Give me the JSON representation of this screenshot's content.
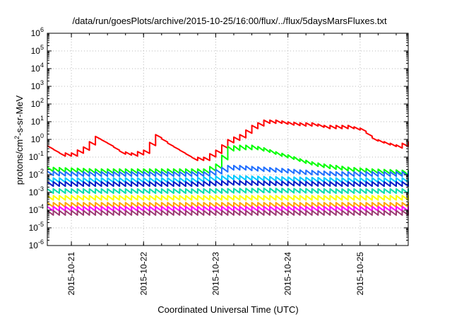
{
  "chart_data": {
    "type": "line",
    "title": "/data/run/goesPlots/archive/2015-10-25/16:00/flux/../flux/5daysMarsFluxes.txt",
    "xlabel": "Coordinated Universal Time (UTC)",
    "ylabel": "protons/cm²-s-sr-MeV",
    "ylabel_parts": {
      "base": "protons/cm",
      "sup": "2",
      "rest": "-s-sr-MeV"
    },
    "yscale": "log",
    "ylim": [
      1e-06,
      1000000.0
    ],
    "y_ticks": [
      {
        "base": "10",
        "exp": "-6",
        "value": 1e-06
      },
      {
        "base": "10",
        "exp": "-5",
        "value": 1e-05
      },
      {
        "base": "10",
        "exp": "-4",
        "value": 0.0001
      },
      {
        "base": "10",
        "exp": "-3",
        "value": 0.001
      },
      {
        "base": "10",
        "exp": "-2",
        "value": 0.01
      },
      {
        "base": "10",
        "exp": "-1",
        "value": 0.1
      },
      {
        "base": "10",
        "exp": "0",
        "value": 1
      },
      {
        "base": "10",
        "exp": "1",
        "value": 10
      },
      {
        "base": "10",
        "exp": "2",
        "value": 100
      },
      {
        "base": "10",
        "exp": "3",
        "value": 1000
      },
      {
        "base": "10",
        "exp": "4",
        "value": 10000
      },
      {
        "base": "10",
        "exp": "5",
        "value": 100000
      },
      {
        "base": "10",
        "exp": "6",
        "value": 1000000
      }
    ],
    "xlim": [
      "2015-10-20 16:00",
      "2015-10-25 16:00"
    ],
    "x_ticks": [
      {
        "label": "2015-10-21",
        "value": "2015-10-21 00:00"
      },
      {
        "label": "2015-10-22",
        "value": "2015-10-22 00:00"
      },
      {
        "label": "2015-10-23",
        "value": "2015-10-23 00:00"
      },
      {
        "label": "2015-10-24",
        "value": "2015-10-24 00:00"
      },
      {
        "label": "2015-10-25",
        "value": "2015-10-25 00:00"
      }
    ],
    "grid": true,
    "legend": "none",
    "series": [
      {
        "color": "#ff0000",
        "pattern": "sawtooth",
        "x": [
          "2015-10-20 16:00",
          "2015-10-20 20:00",
          "2015-10-21 00:00",
          "2015-10-21 04:00",
          "2015-10-21 08:00",
          "2015-10-21 12:00",
          "2015-10-21 16:00",
          "2015-10-21 20:00",
          "2015-10-22 00:00",
          "2015-10-22 04:00",
          "2015-10-22 08:00",
          "2015-10-22 12:00",
          "2015-10-22 16:00",
          "2015-10-22 20:00",
          "2015-10-23 00:00",
          "2015-10-23 04:00",
          "2015-10-23 08:00",
          "2015-10-23 12:00",
          "2015-10-23 16:00",
          "2015-10-23 20:00",
          "2015-10-24 00:00",
          "2015-10-24 04:00",
          "2015-10-24 08:00",
          "2015-10-24 12:00",
          "2015-10-24 16:00",
          "2015-10-24 20:00",
          "2015-10-25 00:00",
          "2015-10-25 04:00",
          "2015-10-25 08:00",
          "2015-10-25 12:00",
          "2015-10-25 16:00"
        ],
        "y": [
          0.35,
          0.14,
          0.14,
          0.3,
          1.2,
          0.5,
          0.18,
          0.14,
          0.2,
          1.5,
          0.5,
          0.2,
          0.08,
          0.08,
          0.2,
          0.8,
          1.5,
          5,
          10,
          10,
          8,
          7,
          7,
          5,
          5,
          5,
          3.5,
          1,
          0.6,
          0.4,
          0.6
        ]
      },
      {
        "color": "#00ff00",
        "pattern": "sawtooth",
        "x": [
          "2015-10-20 16:00",
          "2015-10-21 00:00",
          "2015-10-21 08:00",
          "2015-10-21 16:00",
          "2015-10-22 00:00",
          "2015-10-22 08:00",
          "2015-10-22 16:00",
          "2015-10-22 20:00",
          "2015-10-23 00:00",
          "2015-10-23 04:00",
          "2015-10-23 08:00",
          "2015-10-23 12:00",
          "2015-10-23 16:00",
          "2015-10-23 20:00",
          "2015-10-24 00:00",
          "2015-10-24 04:00",
          "2015-10-24 08:00",
          "2015-10-24 12:00",
          "2015-10-24 16:00",
          "2015-10-24 20:00",
          "2015-10-25 00:00",
          "2015-10-25 04:00",
          "2015-10-25 08:00",
          "2015-10-25 12:00",
          "2015-10-25 16:00"
        ],
        "y": [
          0.02,
          0.018,
          0.016,
          0.016,
          0.016,
          0.016,
          0.016,
          0.016,
          0.03,
          0.3,
          0.35,
          0.35,
          0.25,
          0.15,
          0.1,
          0.06,
          0.04,
          0.03,
          0.025,
          0.02,
          0.018,
          0.016,
          0.015,
          0.014,
          0.013
        ]
      },
      {
        "color": "#1f6fff",
        "pattern": "sawtooth",
        "x": [
          "2015-10-20 16:00",
          "2015-10-21 00:00",
          "2015-10-21 08:00",
          "2015-10-21 16:00",
          "2015-10-22 00:00",
          "2015-10-22 08:00",
          "2015-10-22 16:00",
          "2015-10-22 20:00",
          "2015-10-23 00:00",
          "2015-10-23 04:00",
          "2015-10-23 08:00",
          "2015-10-23 12:00",
          "2015-10-23 16:00",
          "2015-10-23 20:00",
          "2015-10-24 00:00",
          "2015-10-24 04:00",
          "2015-10-24 08:00",
          "2015-10-24 12:00",
          "2015-10-24 16:00",
          "2015-10-24 20:00",
          "2015-10-25 00:00",
          "2015-10-25 04:00",
          "2015-10-25 08:00",
          "2015-10-25 12:00",
          "2015-10-25 16:00"
        ],
        "y": [
          0.012,
          0.011,
          0.011,
          0.011,
          0.011,
          0.011,
          0.011,
          0.011,
          0.015,
          0.025,
          0.025,
          0.022,
          0.02,
          0.018,
          0.016,
          0.014,
          0.013,
          0.012,
          0.011,
          0.011,
          0.011,
          0.011,
          0.011,
          0.011,
          0.011
        ]
      },
      {
        "color": "#00c8ff",
        "pattern": "sawtooth",
        "x": [
          "2015-10-20 16:00",
          "2015-10-21 16:00",
          "2015-10-22 16:00",
          "2015-10-23 04:00",
          "2015-10-23 16:00",
          "2015-10-24 16:00",
          "2015-10-25 16:00"
        ],
        "y": [
          0.005,
          0.005,
          0.005,
          0.007,
          0.006,
          0.005,
          0.005
        ]
      },
      {
        "color": "#0018c8",
        "pattern": "sawtooth",
        "x": [
          "2015-10-20 16:00",
          "2015-10-21 16:00",
          "2015-10-22 16:00",
          "2015-10-23 04:00",
          "2015-10-23 16:00",
          "2015-10-24 16:00",
          "2015-10-25 16:00"
        ],
        "y": [
          0.003,
          0.003,
          0.003,
          0.0035,
          0.0033,
          0.003,
          0.003
        ]
      },
      {
        "color": "#00ddaa",
        "pattern": "sawtooth",
        "x": [
          "2015-10-20 16:00",
          "2015-10-21 16:00",
          "2015-10-22 16:00",
          "2015-10-23 16:00",
          "2015-10-24 16:00",
          "2015-10-25 16:00"
        ],
        "y": [
          0.0012,
          0.0012,
          0.0012,
          0.0013,
          0.0012,
          0.0012
        ]
      },
      {
        "color": "#ffff00",
        "pattern": "sawtooth",
        "x": [
          "2015-10-20 16:00",
          "2015-10-21 16:00",
          "2015-10-22 16:00",
          "2015-10-23 16:00",
          "2015-10-24 16:00",
          "2015-10-25 16:00"
        ],
        "y": [
          0.0005,
          0.0005,
          0.0005,
          0.0005,
          0.0005,
          0.0005
        ]
      },
      {
        "color": "#ffa500",
        "pattern": "sawtooth",
        "x": [
          "2015-10-20 16:00",
          "2015-10-21 16:00",
          "2015-10-22 16:00",
          "2015-10-23 16:00",
          "2015-10-24 16:00",
          "2015-10-25 16:00"
        ],
        "y": [
          0.0002,
          0.0002,
          0.0002,
          0.0002,
          0.0002,
          0.0002
        ]
      },
      {
        "color": "#ff00ff",
        "pattern": "sawtooth",
        "x": [
          "2015-10-20 16:00",
          "2015-10-21 16:00",
          "2015-10-22 16:00",
          "2015-10-23 16:00",
          "2015-10-24 16:00",
          "2015-10-25 16:00"
        ],
        "y": [
          0.00012,
          0.00012,
          0.00012,
          0.00012,
          0.00012,
          0.00012
        ]
      },
      {
        "color": "#9b3a72",
        "pattern": "sawtooth",
        "x": [
          "2015-10-20 16:00",
          "2015-10-21 16:00",
          "2015-10-22 16:00",
          "2015-10-23 16:00",
          "2015-10-24 16:00",
          "2015-10-25 16:00"
        ],
        "y": [
          7e-05,
          7e-05,
          7e-05,
          7e-05,
          7e-05,
          7e-05
        ]
      }
    ]
  }
}
